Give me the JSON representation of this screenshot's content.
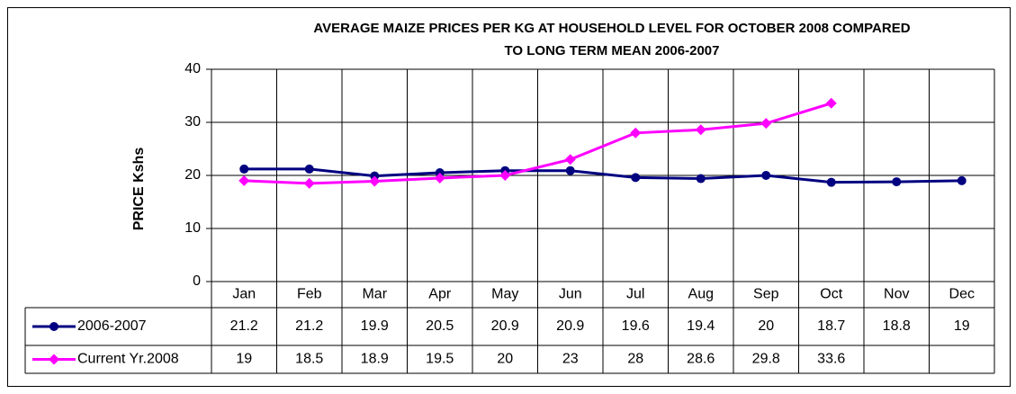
{
  "chart_data": {
    "type": "line",
    "title": [
      "AVERAGE  MAIZE PRICES PER KG AT HOUSEHOLD LEVEL FOR OCTOBER 2008 COMPARED",
      "TO LONG TERM MEAN 2006-2007"
    ],
    "y_label": "PRICE Kshs",
    "categories": [
      "Jan",
      "Feb",
      "Mar",
      "Apr",
      "May",
      "Jun",
      "Jul",
      "Aug",
      "Sep",
      "Oct",
      "Nov",
      "Dec"
    ],
    "series": [
      {
        "name": "2006-2007",
        "color": "#000080",
        "marker": "circle",
        "values": [
          21.2,
          21.2,
          19.9,
          20.5,
          20.9,
          20.9,
          19.6,
          19.4,
          20,
          18.7,
          18.8,
          19
        ]
      },
      {
        "name": "Current Yr.2008",
        "color": "#ff00ff",
        "marker": "diamond",
        "values": [
          19,
          18.5,
          18.9,
          19.5,
          20,
          23,
          28,
          28.6,
          29.8,
          33.6,
          null,
          null
        ]
      }
    ],
    "ylim": [
      0,
      40
    ],
    "yticks": [
      0,
      10,
      20,
      30,
      40
    ],
    "grid": true,
    "data_table": true
  }
}
